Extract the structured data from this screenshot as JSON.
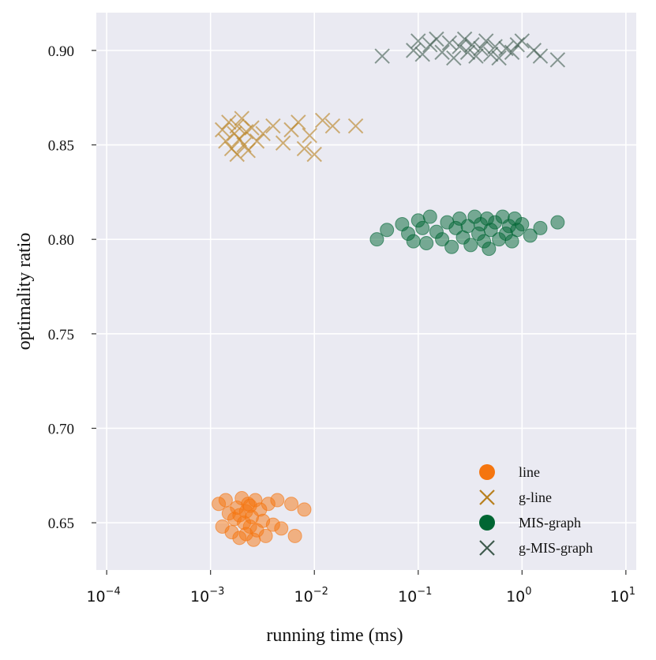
{
  "chart_data": {
    "type": "scatter",
    "title": "",
    "xlabel": "running time (ms)",
    "ylabel": "optimality ratio",
    "xscale": "log",
    "xlim_exponent": [
      -4.1,
      1.1
    ],
    "ylim": [
      0.625,
      0.92
    ],
    "x_ticks": [
      {
        "exponent": -4,
        "base": "10",
        "sup": "−4"
      },
      {
        "exponent": -3,
        "base": "10",
        "sup": "−3"
      },
      {
        "exponent": -2,
        "base": "10",
        "sup": "−2"
      },
      {
        "exponent": -1,
        "base": "10",
        "sup": "−1"
      },
      {
        "exponent": 0,
        "base": "10",
        "sup": "0"
      },
      {
        "exponent": 1,
        "base": "10",
        "sup": "1"
      }
    ],
    "y_ticks": [
      {
        "value": 0.65,
        "label": "0.65"
      },
      {
        "value": 0.7,
        "label": "0.70"
      },
      {
        "value": 0.75,
        "label": "0.75"
      },
      {
        "value": 0.8,
        "label": "0.80"
      },
      {
        "value": 0.85,
        "label": "0.85"
      },
      {
        "value": 0.9,
        "label": "0.90"
      }
    ],
    "grid": true,
    "legend_position": "lower-right",
    "background": "#eaeaf2",
    "series": [
      {
        "name": "line",
        "marker": "circle",
        "color": "#f5750f",
        "points": [
          {
            "x": 0.0012,
            "y": 0.66
          },
          {
            "x": 0.0013,
            "y": 0.648
          },
          {
            "x": 0.0014,
            "y": 0.662
          },
          {
            "x": 0.0015,
            "y": 0.655
          },
          {
            "x": 0.0016,
            "y": 0.645
          },
          {
            "x": 0.0017,
            "y": 0.652
          },
          {
            "x": 0.0018,
            "y": 0.658
          },
          {
            "x": 0.0019,
            "y": 0.642
          },
          {
            "x": 0.002,
            "y": 0.663
          },
          {
            "x": 0.0021,
            "y": 0.65
          },
          {
            "x": 0.0022,
            "y": 0.656
          },
          {
            "x": 0.0022,
            "y": 0.644
          },
          {
            "x": 0.0023,
            "y": 0.66
          },
          {
            "x": 0.0024,
            "y": 0.648
          },
          {
            "x": 0.0025,
            "y": 0.653
          },
          {
            "x": 0.0026,
            "y": 0.641
          },
          {
            "x": 0.0027,
            "y": 0.662
          },
          {
            "x": 0.0028,
            "y": 0.646
          },
          {
            "x": 0.003,
            "y": 0.657
          },
          {
            "x": 0.0032,
            "y": 0.651
          },
          {
            "x": 0.0034,
            "y": 0.643
          },
          {
            "x": 0.0036,
            "y": 0.66
          },
          {
            "x": 0.004,
            "y": 0.649
          },
          {
            "x": 0.0044,
            "y": 0.662
          },
          {
            "x": 0.0048,
            "y": 0.647
          },
          {
            "x": 0.006,
            "y": 0.66
          },
          {
            "x": 0.0065,
            "y": 0.643
          },
          {
            "x": 0.008,
            "y": 0.657
          },
          {
            "x": 0.0019,
            "y": 0.654
          },
          {
            "x": 0.0024,
            "y": 0.659
          }
        ]
      },
      {
        "name": "g-line",
        "marker": "x",
        "color": "#b8801e",
        "points": [
          {
            "x": 0.0013,
            "y": 0.858
          },
          {
            "x": 0.0014,
            "y": 0.852
          },
          {
            "x": 0.0015,
            "y": 0.862
          },
          {
            "x": 0.0016,
            "y": 0.848
          },
          {
            "x": 0.0017,
            "y": 0.856
          },
          {
            "x": 0.0018,
            "y": 0.86
          },
          {
            "x": 0.0018,
            "y": 0.845
          },
          {
            "x": 0.0019,
            "y": 0.853
          },
          {
            "x": 0.002,
            "y": 0.864
          },
          {
            "x": 0.0021,
            "y": 0.85
          },
          {
            "x": 0.0022,
            "y": 0.857
          },
          {
            "x": 0.0023,
            "y": 0.847
          },
          {
            "x": 0.0025,
            "y": 0.859
          },
          {
            "x": 0.0028,
            "y": 0.852
          },
          {
            "x": 0.0032,
            "y": 0.856
          },
          {
            "x": 0.004,
            "y": 0.86
          },
          {
            "x": 0.005,
            "y": 0.851
          },
          {
            "x": 0.006,
            "y": 0.858
          },
          {
            "x": 0.007,
            "y": 0.862
          },
          {
            "x": 0.008,
            "y": 0.848
          },
          {
            "x": 0.009,
            "y": 0.855
          },
          {
            "x": 0.01,
            "y": 0.845
          },
          {
            "x": 0.012,
            "y": 0.863
          },
          {
            "x": 0.015,
            "y": 0.86
          },
          {
            "x": 0.025,
            "y": 0.86
          }
        ]
      },
      {
        "name": "MIS-graph",
        "marker": "circle",
        "color": "#006633",
        "points": [
          {
            "x": 0.04,
            "y": 0.8
          },
          {
            "x": 0.05,
            "y": 0.805
          },
          {
            "x": 0.07,
            "y": 0.808
          },
          {
            "x": 0.08,
            "y": 0.803
          },
          {
            "x": 0.09,
            "y": 0.799
          },
          {
            "x": 0.1,
            "y": 0.81
          },
          {
            "x": 0.11,
            "y": 0.806
          },
          {
            "x": 0.12,
            "y": 0.798
          },
          {
            "x": 0.13,
            "y": 0.812
          },
          {
            "x": 0.15,
            "y": 0.804
          },
          {
            "x": 0.17,
            "y": 0.8
          },
          {
            "x": 0.19,
            "y": 0.809
          },
          {
            "x": 0.21,
            "y": 0.796
          },
          {
            "x": 0.23,
            "y": 0.806
          },
          {
            "x": 0.25,
            "y": 0.811
          },
          {
            "x": 0.27,
            "y": 0.801
          },
          {
            "x": 0.3,
            "y": 0.807
          },
          {
            "x": 0.32,
            "y": 0.797
          },
          {
            "x": 0.35,
            "y": 0.812
          },
          {
            "x": 0.38,
            "y": 0.803
          },
          {
            "x": 0.4,
            "y": 0.808
          },
          {
            "x": 0.43,
            "y": 0.799
          },
          {
            "x": 0.46,
            "y": 0.811
          },
          {
            "x": 0.48,
            "y": 0.795
          },
          {
            "x": 0.5,
            "y": 0.805
          },
          {
            "x": 0.55,
            "y": 0.809
          },
          {
            "x": 0.6,
            "y": 0.8
          },
          {
            "x": 0.65,
            "y": 0.812
          },
          {
            "x": 0.7,
            "y": 0.803
          },
          {
            "x": 0.75,
            "y": 0.807
          },
          {
            "x": 0.8,
            "y": 0.799
          },
          {
            "x": 0.85,
            "y": 0.811
          },
          {
            "x": 0.9,
            "y": 0.805
          },
          {
            "x": 1.0,
            "y": 0.808
          },
          {
            "x": 1.2,
            "y": 0.802
          },
          {
            "x": 1.5,
            "y": 0.806
          },
          {
            "x": 2.2,
            "y": 0.809
          }
        ]
      },
      {
        "name": "g-MIS-graph",
        "marker": "x",
        "color": "#3f5b4e",
        "points": [
          {
            "x": 0.045,
            "y": 0.897
          },
          {
            "x": 0.09,
            "y": 0.9
          },
          {
            "x": 0.1,
            "y": 0.905
          },
          {
            "x": 0.11,
            "y": 0.898
          },
          {
            "x": 0.13,
            "y": 0.903
          },
          {
            "x": 0.15,
            "y": 0.906
          },
          {
            "x": 0.17,
            "y": 0.899
          },
          {
            "x": 0.2,
            "y": 0.904
          },
          {
            "x": 0.22,
            "y": 0.896
          },
          {
            "x": 0.25,
            "y": 0.902
          },
          {
            "x": 0.28,
            "y": 0.906
          },
          {
            "x": 0.3,
            "y": 0.899
          },
          {
            "x": 0.33,
            "y": 0.903
          },
          {
            "x": 0.36,
            "y": 0.897
          },
          {
            "x": 0.4,
            "y": 0.901
          },
          {
            "x": 0.45,
            "y": 0.905
          },
          {
            "x": 0.5,
            "y": 0.898
          },
          {
            "x": 0.55,
            "y": 0.902
          },
          {
            "x": 0.6,
            "y": 0.896
          },
          {
            "x": 0.7,
            "y": 0.901
          },
          {
            "x": 0.8,
            "y": 0.899
          },
          {
            "x": 0.9,
            "y": 0.903
          },
          {
            "x": 1.0,
            "y": 0.905
          },
          {
            "x": 1.3,
            "y": 0.9
          },
          {
            "x": 1.5,
            "y": 0.897
          },
          {
            "x": 2.2,
            "y": 0.895
          }
        ]
      }
    ]
  }
}
